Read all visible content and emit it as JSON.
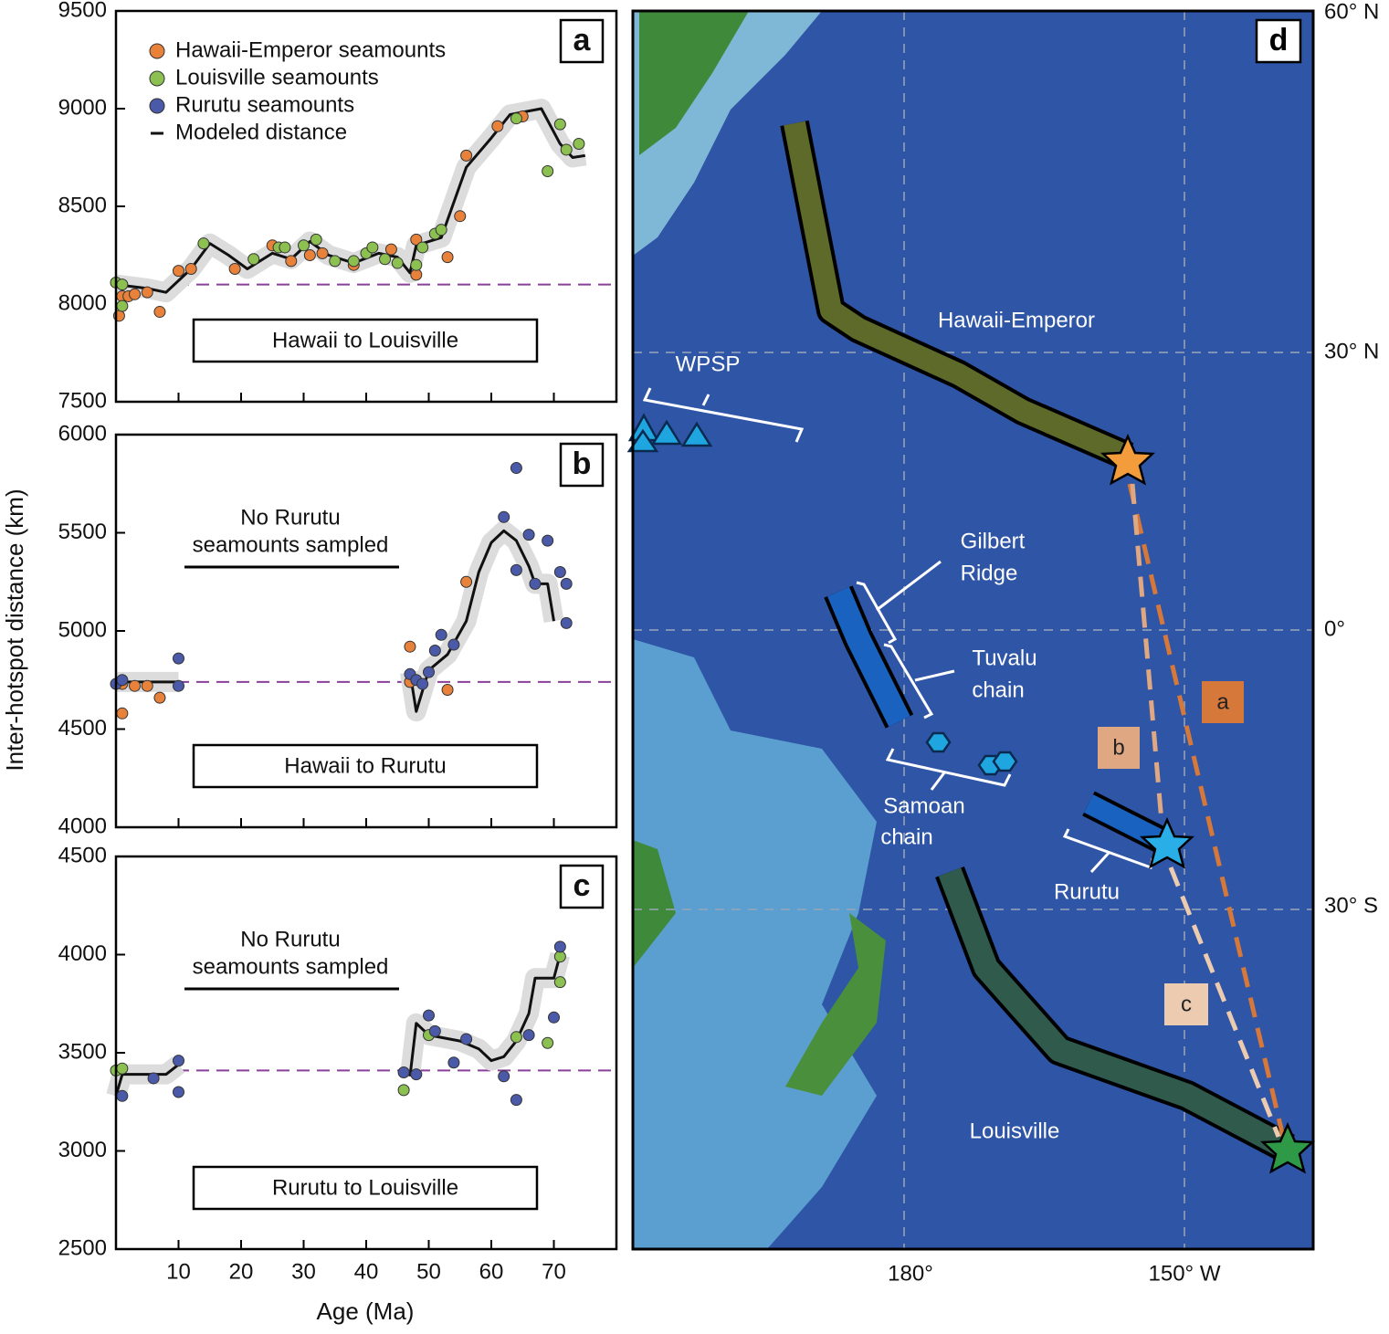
{
  "chart_data": [
    {
      "type": "scatter",
      "panel": "a",
      "xlim": [
        0,
        80
      ],
      "xticks": [
        10,
        20,
        30,
        40,
        50,
        60,
        70
      ],
      "xtick_labels": false,
      "ylim": [
        7500,
        9500
      ],
      "yticks": [
        7500,
        8000,
        8500,
        9000,
        9500
      ],
      "legend": "upper left",
      "reference_line": 8100,
      "reference_color": "#8a3f9a",
      "label": "Hawaii to Louisville",
      "series": [
        {
          "name": "Hawaii-Emperor seamounts",
          "color": "#e8823a",
          "x": [
            0.5,
            1,
            2,
            3,
            5,
            7,
            10,
            12,
            19,
            25,
            28,
            31,
            33,
            38,
            44,
            48,
            48,
            53,
            55,
            56,
            61,
            65
          ],
          "values": [
            7940,
            8040,
            8040,
            8050,
            8060,
            7960,
            8170,
            8180,
            8180,
            8300,
            8220,
            8250,
            8260,
            8200,
            8280,
            8150,
            8330,
            8240,
            8450,
            8760,
            8910,
            8960
          ]
        },
        {
          "name": "Louisville seamounts",
          "color": "#8cc152",
          "x": [
            0,
            1,
            1,
            14,
            22,
            26,
            27,
            30,
            32,
            35,
            38,
            40,
            41,
            43,
            45,
            48,
            49,
            51,
            52,
            64,
            69,
            71,
            72,
            74
          ],
          "values": [
            8110,
            7990,
            8100,
            8310,
            8230,
            8290,
            8290,
            8300,
            8330,
            8220,
            8220,
            8260,
            8290,
            8230,
            8210,
            8200,
            8290,
            8360,
            8380,
            8950,
            8680,
            8920,
            8790,
            8820
          ]
        },
        {
          "name": "Rurutu seamounts",
          "color": "#4a5aa8",
          "x": [],
          "values": []
        },
        {
          "name": "Modeled distance",
          "type": "line",
          "color": "#111111",
          "x": [
            0,
            5,
            8,
            12,
            15,
            18,
            21,
            25,
            28,
            31,
            34,
            38,
            42,
            45,
            47,
            48,
            52,
            56,
            60,
            63,
            68,
            71,
            73,
            75
          ],
          "values": [
            8100,
            8080,
            8060,
            8180,
            8310,
            8250,
            8180,
            8260,
            8230,
            8320,
            8250,
            8210,
            8260,
            8240,
            8160,
            8300,
            8340,
            8700,
            8850,
            8970,
            9000,
            8820,
            8750,
            8760
          ]
        }
      ]
    },
    {
      "type": "scatter",
      "panel": "b",
      "xlim": [
        0,
        80
      ],
      "xticks": [
        10,
        20,
        30,
        40,
        50,
        60,
        70
      ],
      "xtick_labels": false,
      "ylim": [
        4000,
        6000
      ],
      "yticks": [
        4000,
        4500,
        5000,
        5500,
        6000
      ],
      "reference_line": 4740,
      "reference_color": "#8a3f9a",
      "y_label": "Inter-hotspot distance (km)",
      "note": [
        "No Rurutu",
        "seamounts sampled"
      ],
      "label": "Hawaii to Rurutu",
      "series": [
        {
          "color": "#e8823a",
          "x": [
            1,
            1,
            3,
            5,
            7,
            47,
            47,
            53,
            56
          ],
          "values": [
            4580,
            4730,
            4720,
            4720,
            4660,
            4920,
            4740,
            4700,
            5250
          ]
        },
        {
          "color": "#4a5aa8",
          "x": [
            0,
            1,
            10,
            10,
            47,
            48,
            49,
            50,
            51,
            52,
            54,
            62,
            64,
            64,
            66,
            67,
            69,
            71,
            72,
            72
          ],
          "values": [
            4730,
            4750,
            4860,
            4720,
            4780,
            4750,
            4730,
            4790,
            4900,
            4980,
            4930,
            5580,
            5830,
            5310,
            5490,
            5240,
            5460,
            5300,
            5240,
            5040
          ]
        },
        {
          "type": "line",
          "color": "#111111",
          "x": [
            0,
            5,
            10,
            null,
            47,
            48,
            50,
            53,
            56,
            58,
            60,
            62,
            64,
            66,
            67,
            69,
            70
          ],
          "values": [
            4740,
            4740,
            4740,
            null,
            4790,
            4590,
            4800,
            4880,
            5050,
            5300,
            5450,
            5510,
            5460,
            5330,
            5240,
            5240,
            5050
          ]
        }
      ]
    },
    {
      "type": "scatter",
      "panel": "c",
      "xlim": [
        0,
        80
      ],
      "xticks": [
        10,
        20,
        30,
        40,
        50,
        60,
        70
      ],
      "xtick_labels": true,
      "ylim": [
        2500,
        4500
      ],
      "yticks": [
        2500,
        3000,
        3500,
        4000,
        4500
      ],
      "reference_line": 3410,
      "reference_color": "#8a3f9a",
      "x_label": "Age (Ma)",
      "note": [
        "No Rurutu",
        "seamounts sampled"
      ],
      "label": "Rurutu to Louisville",
      "series": [
        {
          "color": "#8cc152",
          "x": [
            0,
            1,
            46,
            50,
            64,
            69,
            71,
            71
          ],
          "values": [
            3410,
            3420,
            3310,
            3590,
            3580,
            3550,
            3990,
            3860
          ]
        },
        {
          "color": "#4a5aa8",
          "x": [
            1,
            6,
            10,
            10,
            46,
            48,
            50,
            51,
            54,
            56,
            62,
            64,
            66,
            70,
            71
          ],
          "values": [
            3280,
            3370,
            3460,
            3300,
            3400,
            3390,
            3690,
            3610,
            3450,
            3570,
            3380,
            3260,
            3590,
            3680,
            4040
          ]
        },
        {
          "type": "line",
          "color": "#111111",
          "x": [
            0,
            1,
            8,
            10,
            null,
            47,
            48,
            50,
            55,
            58,
            60,
            62,
            64,
            66,
            67,
            70,
            71
          ],
          "values": [
            3280,
            3390,
            3390,
            3440,
            null,
            3380,
            3650,
            3590,
            3560,
            3520,
            3460,
            3480,
            3560,
            3700,
            3880,
            3880,
            4000
          ]
        }
      ]
    }
  ],
  "map": {
    "panel": "d",
    "lat_labels": [
      "60° N",
      "30° N",
      "0°",
      "30° S"
    ],
    "lon_labels": [
      "180°",
      "150° W"
    ],
    "labels": {
      "hawaii": "Hawaii-Emperor",
      "wpsp": "WPSP",
      "gilbert": [
        "Gilbert",
        "Ridge"
      ],
      "tuvalu": [
        "Tuvalu",
        "chain"
      ],
      "samoan": [
        "Samoan",
        "chain"
      ],
      "rurutu": "Rurutu",
      "louisville": "Louisville"
    },
    "distance_labels": [
      "a",
      "b",
      "c"
    ]
  }
}
